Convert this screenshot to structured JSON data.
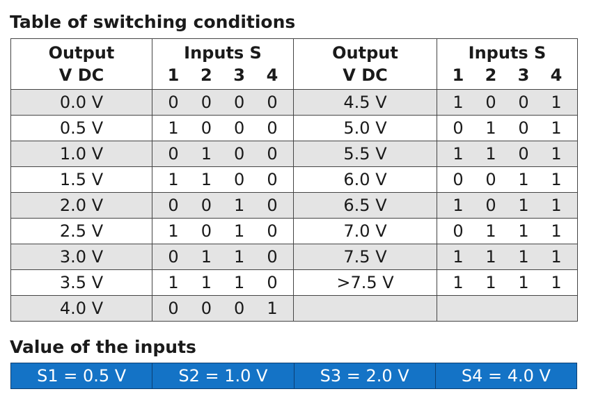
{
  "title": "Table of switching conditions",
  "headers": {
    "output_line1": "Output",
    "output_line2": "V DC",
    "inputs_line1": "Inputs S",
    "inputs_bits": [
      "1",
      "2",
      "3",
      "4"
    ]
  },
  "rows": [
    {
      "left_v": "0.0 V",
      "left_bits": [
        "0",
        "0",
        "0",
        "0"
      ],
      "right_v": "4.5 V",
      "right_bits": [
        "1",
        "0",
        "0",
        "1"
      ]
    },
    {
      "left_v": "0.5 V",
      "left_bits": [
        "1",
        "0",
        "0",
        "0"
      ],
      "right_v": "5.0 V",
      "right_bits": [
        "0",
        "1",
        "0",
        "1"
      ]
    },
    {
      "left_v": "1.0 V",
      "left_bits": [
        "0",
        "1",
        "0",
        "0"
      ],
      "right_v": "5.5 V",
      "right_bits": [
        "1",
        "1",
        "0",
        "1"
      ]
    },
    {
      "left_v": "1.5 V",
      "left_bits": [
        "1",
        "1",
        "0",
        "0"
      ],
      "right_v": "6.0 V",
      "right_bits": [
        "0",
        "0",
        "1",
        "1"
      ]
    },
    {
      "left_v": "2.0 V",
      "left_bits": [
        "0",
        "0",
        "1",
        "0"
      ],
      "right_v": "6.5 V",
      "right_bits": [
        "1",
        "0",
        "1",
        "1"
      ]
    },
    {
      "left_v": "2.5 V",
      "left_bits": [
        "1",
        "0",
        "1",
        "0"
      ],
      "right_v": "7.0 V",
      "right_bits": [
        "0",
        "1",
        "1",
        "1"
      ]
    },
    {
      "left_v": "3.0 V",
      "left_bits": [
        "0",
        "1",
        "1",
        "0"
      ],
      "right_v": "7.5 V",
      "right_bits": [
        "1",
        "1",
        "1",
        "1"
      ]
    },
    {
      "left_v": "3.5 V",
      "left_bits": [
        "1",
        "1",
        "1",
        "0"
      ],
      "right_v": ">7.5 V",
      "right_bits": [
        "1",
        "1",
        "1",
        "1"
      ]
    },
    {
      "left_v": "4.0 V",
      "left_bits": [
        "0",
        "0",
        "0",
        "1"
      ],
      "right_v": "",
      "right_bits": []
    }
  ],
  "inputs_title": "Value of the inputs",
  "inputs": [
    "S1 = 0.5 V",
    "S2 = 1.0 V",
    "S3 = 2.0 V",
    "S4 = 4.0 V"
  ],
  "colors": {
    "row_shade": "#e4e4e4",
    "input_bar": "#1473c6"
  }
}
